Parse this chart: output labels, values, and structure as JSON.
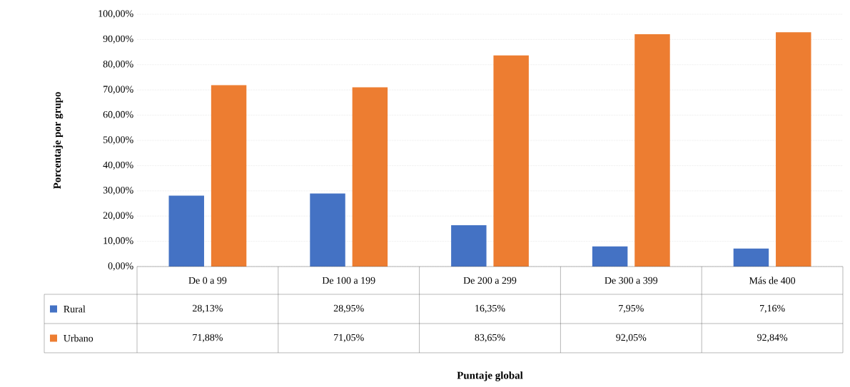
{
  "chart_data": {
    "type": "bar",
    "annotations": [
      "Puntaje global"
    ],
    "ylabel": "Porcentaje por grupo",
    "categories": [
      "De 0 a 99",
      "De 100 a 199",
      "De 200 a 299",
      "De 300 a 399",
      "Más de 400"
    ],
    "series": [
      {
        "name": "Rural",
        "color": "#4472c4",
        "values": [
          28.13,
          28.95,
          16.35,
          7.95,
          7.16
        ],
        "value_labels": [
          "28,13%",
          "28,95%",
          "16,35%",
          "7,95%",
          "7,16%"
        ]
      },
      {
        "name": "Urbano",
        "color": "#ed7d31",
        "values": [
          71.88,
          71.05,
          83.65,
          92.05,
          92.84
        ],
        "value_labels": [
          "71,88%",
          "71,05%",
          "83,65%",
          "92,05%",
          "92,84%"
        ]
      }
    ],
    "ylim": [
      0,
      100
    ],
    "yticks": [
      {
        "value": 0,
        "label": "0,00%"
      },
      {
        "value": 10,
        "label": "10,00%"
      },
      {
        "value": 20,
        "label": "20,00%"
      },
      {
        "value": 30,
        "label": "30,00%"
      },
      {
        "value": 40,
        "label": "40,00%"
      },
      {
        "value": 50,
        "label": "50,00%"
      },
      {
        "value": 60,
        "label": "60,00%"
      },
      {
        "value": 70,
        "label": "70,00%"
      },
      {
        "value": 80,
        "label": "80,00%"
      },
      {
        "value": 90,
        "label": "90,00%"
      },
      {
        "value": 100,
        "label": "100,00%"
      }
    ],
    "grid": "y",
    "legend": "bottom left"
  }
}
